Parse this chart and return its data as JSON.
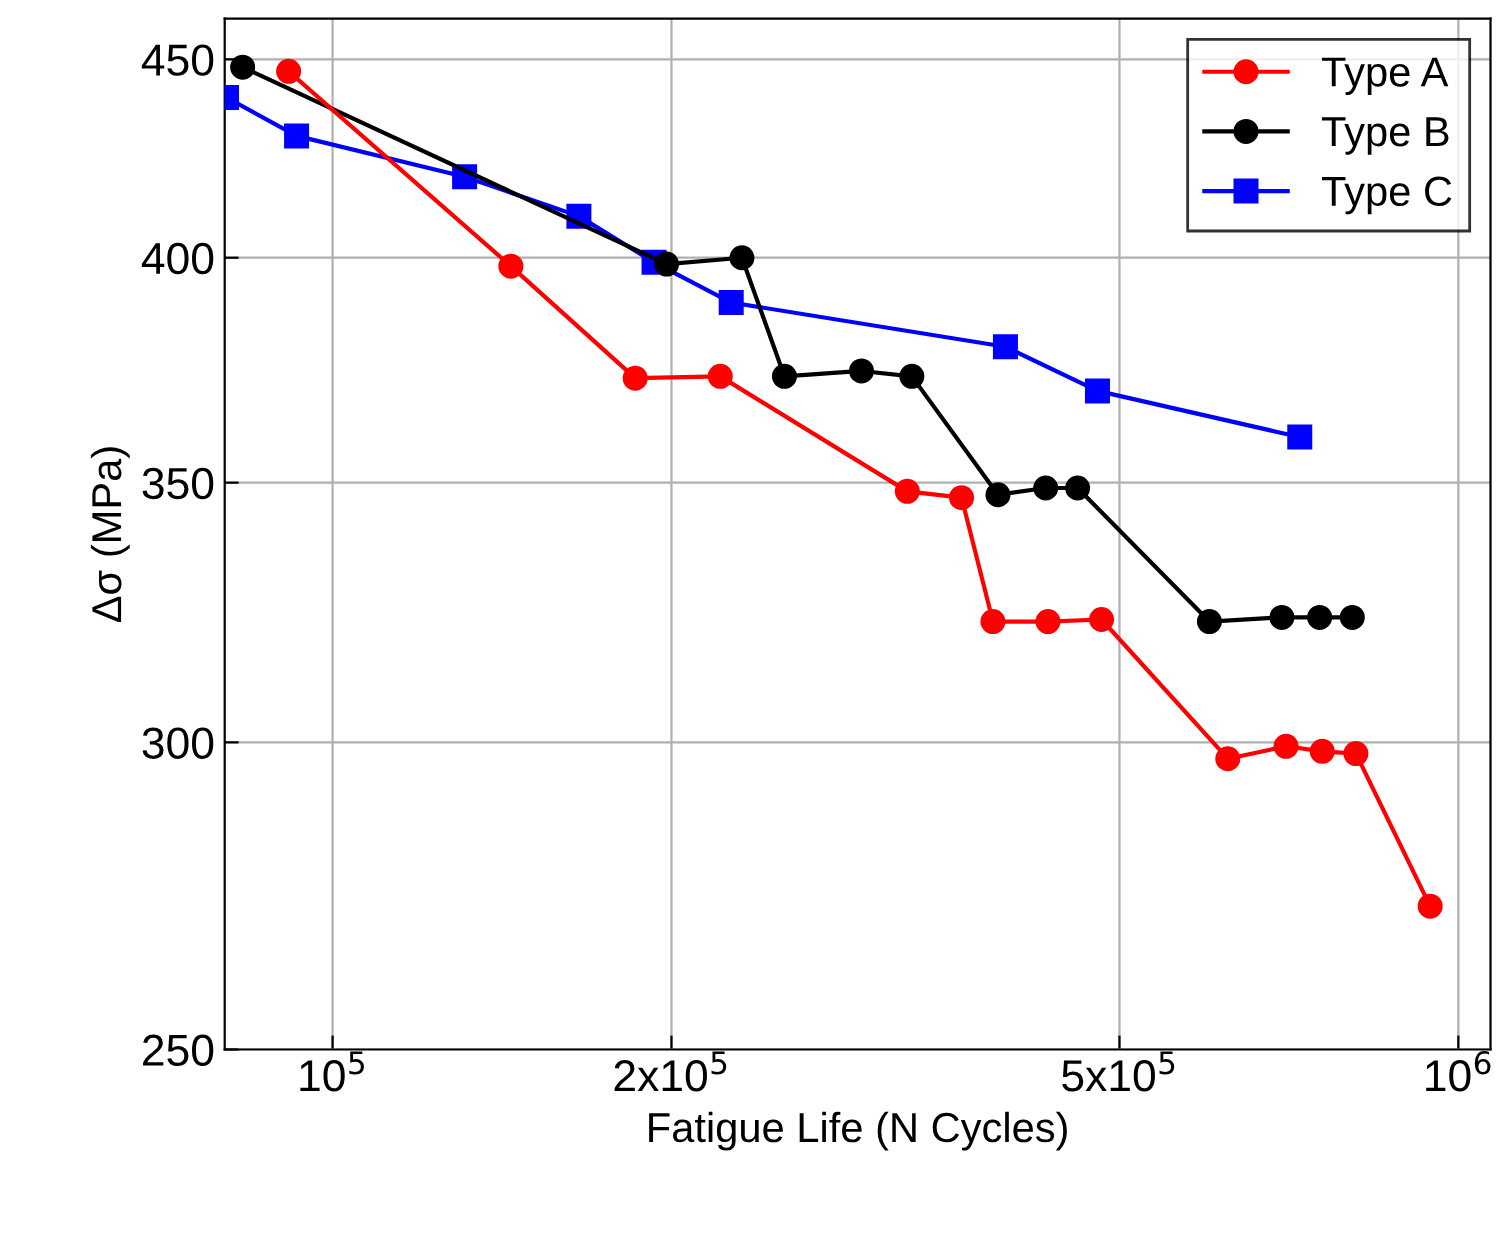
{
  "chart_data": {
    "type": "line",
    "xlabel": "Fatigue Life (N Cycles)",
    "ylabel": "Δσ (MPa)",
    "log": "xy",
    "xlim": [
      80200,
      1068000
    ],
    "ylim": [
      250,
      461
    ],
    "xticks": [
      {
        "value": 100000,
        "label": "10$^{5}$"
      },
      {
        "value": 200000,
        "label": "2x10$^{5}$"
      },
      {
        "value": 500000,
        "label": "5x10$^{5}$"
      },
      {
        "value": 1000000,
        "label": "10$^{6}$"
      }
    ],
    "yticks": [
      250,
      300,
      350,
      400,
      450
    ],
    "grid": true,
    "legend": "top right",
    "line_style": "solid",
    "series": [
      {
        "name": "Type A",
        "color": "#ff0000",
        "marker": "circle",
        "x": [
          91400,
          144000,
          185700,
          221000,
          324000,
          362000,
          386000,
          432000,
          482000,
          624000,
          703000,
          757000,
          811000,
          944000
        ],
        "values": [
          446.8,
          398,
          372.4,
          372.8,
          348.2,
          346.9,
          322.3,
          322.3,
          322.7,
          297.1,
          299.3,
          298.4,
          298.0,
          272.2
        ]
      },
      {
        "name": "Type B",
        "color": "#000000",
        "marker": "circle",
        "x": [
          83200,
          198000,
          231000,
          252000,
          295000,
          327000,
          390000,
          430000,
          459000,
          601000,
          697000,
          753000,
          805000
        ],
        "values": [
          447.9,
          398.5,
          400,
          372.8,
          374,
          372.8,
          347.5,
          348.9,
          348.9,
          322.3,
          323.1,
          323.1,
          323.1
        ]
      },
      {
        "name": "Type C",
        "color": "#0000ff",
        "marker": "square",
        "x": [
          80500,
          92900,
          131000,
          165500,
          193000,
          226000,
          396000,
          478000,
          723000
        ],
        "values": [
          439.9,
          430,
          419.7,
          410,
          398.9,
          389.5,
          379.4,
          369.6,
          359.6
        ]
      }
    ]
  }
}
